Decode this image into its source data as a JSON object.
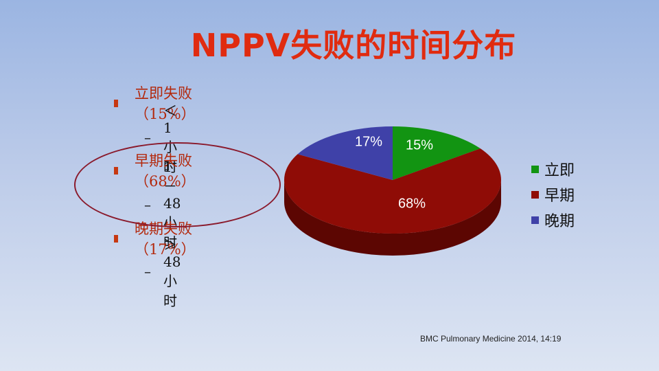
{
  "title": "NPPV失败的时间分布",
  "bullets": [
    {
      "label": "立即失败（15%）",
      "sub": "＜ 1  小时"
    },
    {
      "label": "早期失败（68%）",
      "sub": "1 － 48  小时"
    },
    {
      "label": "晚期失败（17%）",
      "sub": "＞ 48  小时"
    }
  ],
  "chart_data": {
    "type": "pie",
    "categories": [
      "立即",
      "早期",
      "晚期"
    ],
    "values": [
      15,
      68,
      17
    ],
    "data_labels": [
      "15%",
      "68%",
      "17%"
    ],
    "colors": [
      "#129412",
      "#8f0c06",
      "#3f41a8"
    ],
    "side_colors": [
      "#0b5e0b",
      "#5c0602",
      "#262a72"
    ],
    "legend_placement": "right",
    "style": "3d"
  },
  "citation": "BMC Pulmonary Medicine 2014, 14:19"
}
